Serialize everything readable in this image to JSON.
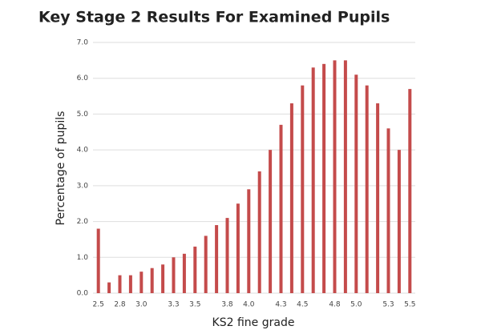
{
  "chart_data": {
    "type": "bar",
    "title": "Key Stage 2 Results For Examined Pupils",
    "x_label": "KS2 fine grade",
    "y_label": "Percentage of pupils",
    "categories": [
      "2.5",
      null,
      "2.8",
      null,
      "3.0",
      null,
      null,
      "3.3",
      null,
      "3.5",
      null,
      null,
      "3.8",
      null,
      "4.0",
      null,
      null,
      "4.3",
      null,
      "4.5",
      null,
      null,
      "4.8",
      null,
      "5.0",
      null,
      null,
      "5.3",
      null,
      "5.5"
    ],
    "values": [
      1.8,
      0.3,
      0.5,
      0.5,
      0.6,
      0.7,
      0.8,
      1.0,
      1.1,
      1.3,
      1.6,
      1.9,
      2.1,
      2.5,
      2.9,
      3.4,
      4.0,
      4.7,
      5.3,
      5.8,
      6.3,
      6.4,
      6.5,
      6.5,
      6.1,
      5.8,
      5.3,
      4.6,
      4.0,
      5.7
    ],
    "color": "#c44b4b",
    "ylim": [
      0,
      7
    ],
    "yticks": [
      {
        "value": 0,
        "label": "0.0"
      },
      {
        "value": 1,
        "label": "1.0"
      },
      {
        "value": 2,
        "label": "2.0"
      },
      {
        "value": 3,
        "label": "3.0"
      },
      {
        "value": 4,
        "label": "4.0"
      },
      {
        "value": 5,
        "label": "5.0"
      },
      {
        "value": 6,
        "label": "6.0"
      },
      {
        "value": 7,
        "label": "7.0"
      }
    ],
    "grid": true
  }
}
